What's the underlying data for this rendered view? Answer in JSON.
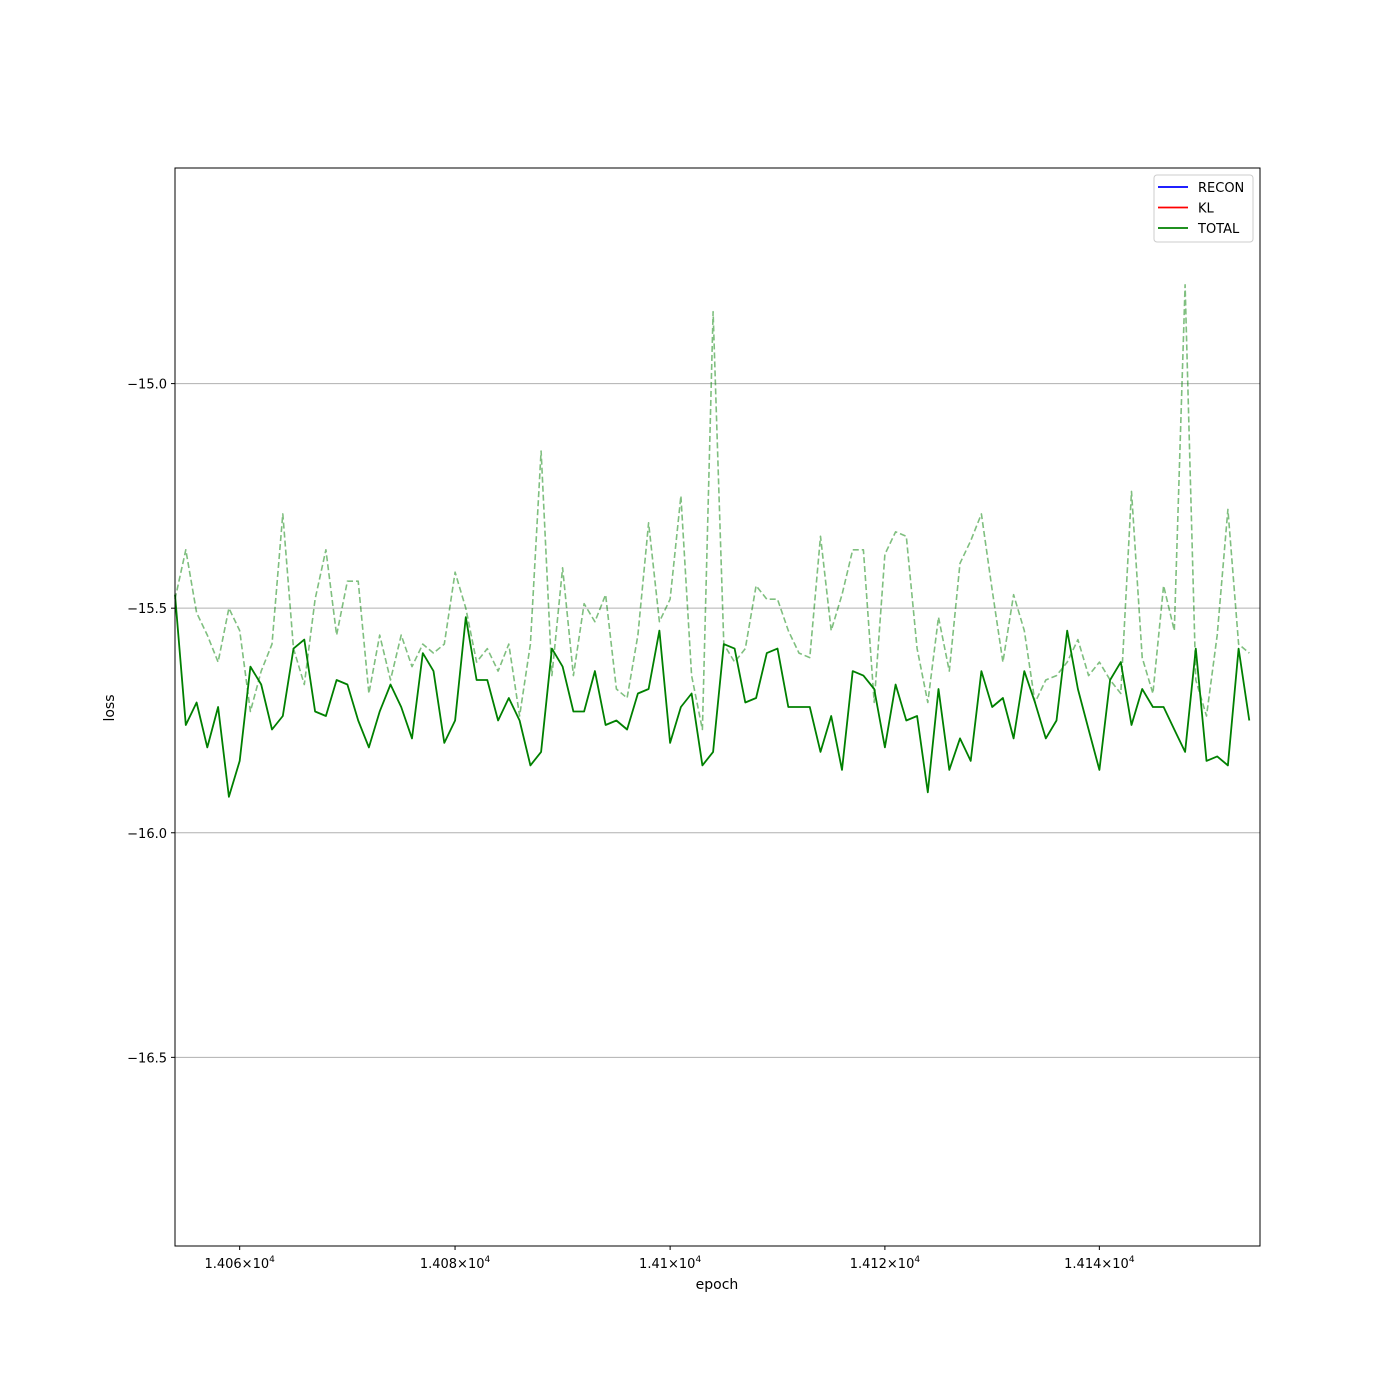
{
  "chart_data": {
    "type": "line",
    "xlabel": "epoch",
    "ylabel": "loss",
    "x_scale": "log",
    "xlim": [
      14054,
      14155
    ],
    "ylim": [
      -16.92,
      -14.52
    ],
    "grid": "y-major",
    "legend_position": "top-right",
    "x_ticks": [
      {
        "value": 14060,
        "mantissa": "1.406",
        "exponent": "4"
      },
      {
        "value": 14080,
        "mantissa": "1.408",
        "exponent": "4"
      },
      {
        "value": 14100,
        "mantissa": "1.41",
        "exponent": "4"
      },
      {
        "value": 14120,
        "mantissa": "1.412",
        "exponent": "4"
      },
      {
        "value": 14140,
        "mantissa": "1.414",
        "exponent": "4"
      }
    ],
    "y_ticks": [
      {
        "value": -15.0,
        "label": "−15.0"
      },
      {
        "value": -15.5,
        "label": "−15.5"
      },
      {
        "value": -16.0,
        "label": "−16.0"
      },
      {
        "value": -16.5,
        "label": "−16.5"
      }
    ],
    "legend": [
      {
        "name": "RECON",
        "color": "#0000ff"
      },
      {
        "name": "KL",
        "color": "#ff0000"
      },
      {
        "name": "TOTAL",
        "color": "#008000"
      }
    ],
    "x_start": 14054,
    "x_step": 1,
    "series": [
      {
        "name": "TOTAL",
        "color": "#008000",
        "style": "solid",
        "values": [
          -15.47,
          -15.76,
          -15.71,
          -15.81,
          -15.72,
          -15.92,
          -15.84,
          -15.63,
          -15.67,
          -15.77,
          -15.74,
          -15.59,
          -15.57,
          -15.73,
          -15.74,
          -15.66,
          -15.67,
          -15.75,
          -15.81,
          -15.73,
          -15.67,
          -15.72,
          -15.79,
          -15.6,
          -15.64,
          -15.8,
          -15.75,
          -15.52,
          -15.66,
          -15.66,
          -15.75,
          -15.7,
          -15.75,
          -15.85,
          -15.82,
          -15.59,
          -15.63,
          -15.73,
          -15.73,
          -15.64,
          -15.76,
          -15.75,
          -15.77,
          -15.69,
          -15.68,
          -15.55,
          -15.8,
          -15.72,
          -15.69,
          -15.85,
          -15.82,
          -15.58,
          -15.59,
          -15.71,
          -15.7,
          -15.6,
          -15.59,
          -15.72,
          -15.72,
          -15.72,
          -15.82,
          -15.74,
          -15.86,
          -15.64,
          -15.65,
          -15.68,
          -15.81,
          -15.67,
          -15.75,
          -15.74,
          -15.91,
          -15.68,
          -15.86,
          -15.79,
          -15.84,
          -15.64,
          -15.72,
          -15.7,
          -15.79,
          -15.64,
          -15.71,
          -15.79,
          -15.75,
          -15.55,
          -15.68,
          -15.77,
          -15.86,
          -15.66,
          -15.62,
          -15.76,
          -15.68,
          -15.72,
          -15.72,
          -15.77,
          -15.82,
          -15.59,
          -15.84,
          -15.83,
          -15.85,
          -15.59,
          -15.75
        ]
      },
      {
        "name": "",
        "color": "#008000",
        "style": "dashed",
        "opacity": 0.5,
        "values": [
          -15.48,
          -15.37,
          -15.51,
          -15.56,
          -15.62,
          -15.5,
          -15.55,
          -15.73,
          -15.64,
          -15.58,
          -15.29,
          -15.59,
          -15.67,
          -15.48,
          -15.37,
          -15.56,
          -15.44,
          -15.44,
          -15.69,
          -15.56,
          -15.66,
          -15.56,
          -15.63,
          -15.58,
          -15.6,
          -15.58,
          -15.42,
          -15.5,
          -15.62,
          -15.59,
          -15.64,
          -15.58,
          -15.74,
          -15.58,
          -15.15,
          -15.65,
          -15.41,
          -15.65,
          -15.49,
          -15.53,
          -15.47,
          -15.68,
          -15.7,
          -15.56,
          -15.31,
          -15.53,
          -15.48,
          -15.25,
          -15.65,
          -15.77,
          -14.84,
          -15.58,
          -15.62,
          -15.59,
          -15.45,
          -15.48,
          -15.48,
          -15.55,
          -15.6,
          -15.61,
          -15.34,
          -15.55,
          -15.47,
          -15.37,
          -15.37,
          -15.71,
          -15.38,
          -15.33,
          -15.34,
          -15.59,
          -15.71,
          -15.52,
          -15.64,
          -15.4,
          -15.35,
          -15.29,
          -15.46,
          -15.62,
          -15.47,
          -15.55,
          -15.71,
          -15.66,
          -15.65,
          -15.62,
          -15.57,
          -15.65,
          -15.62,
          -15.66,
          -15.69,
          -15.24,
          -15.61,
          -15.69,
          -15.45,
          -15.55,
          -14.78,
          -15.66,
          -15.74,
          -15.56,
          -15.28,
          -15.58,
          -15.6
        ]
      }
    ]
  }
}
